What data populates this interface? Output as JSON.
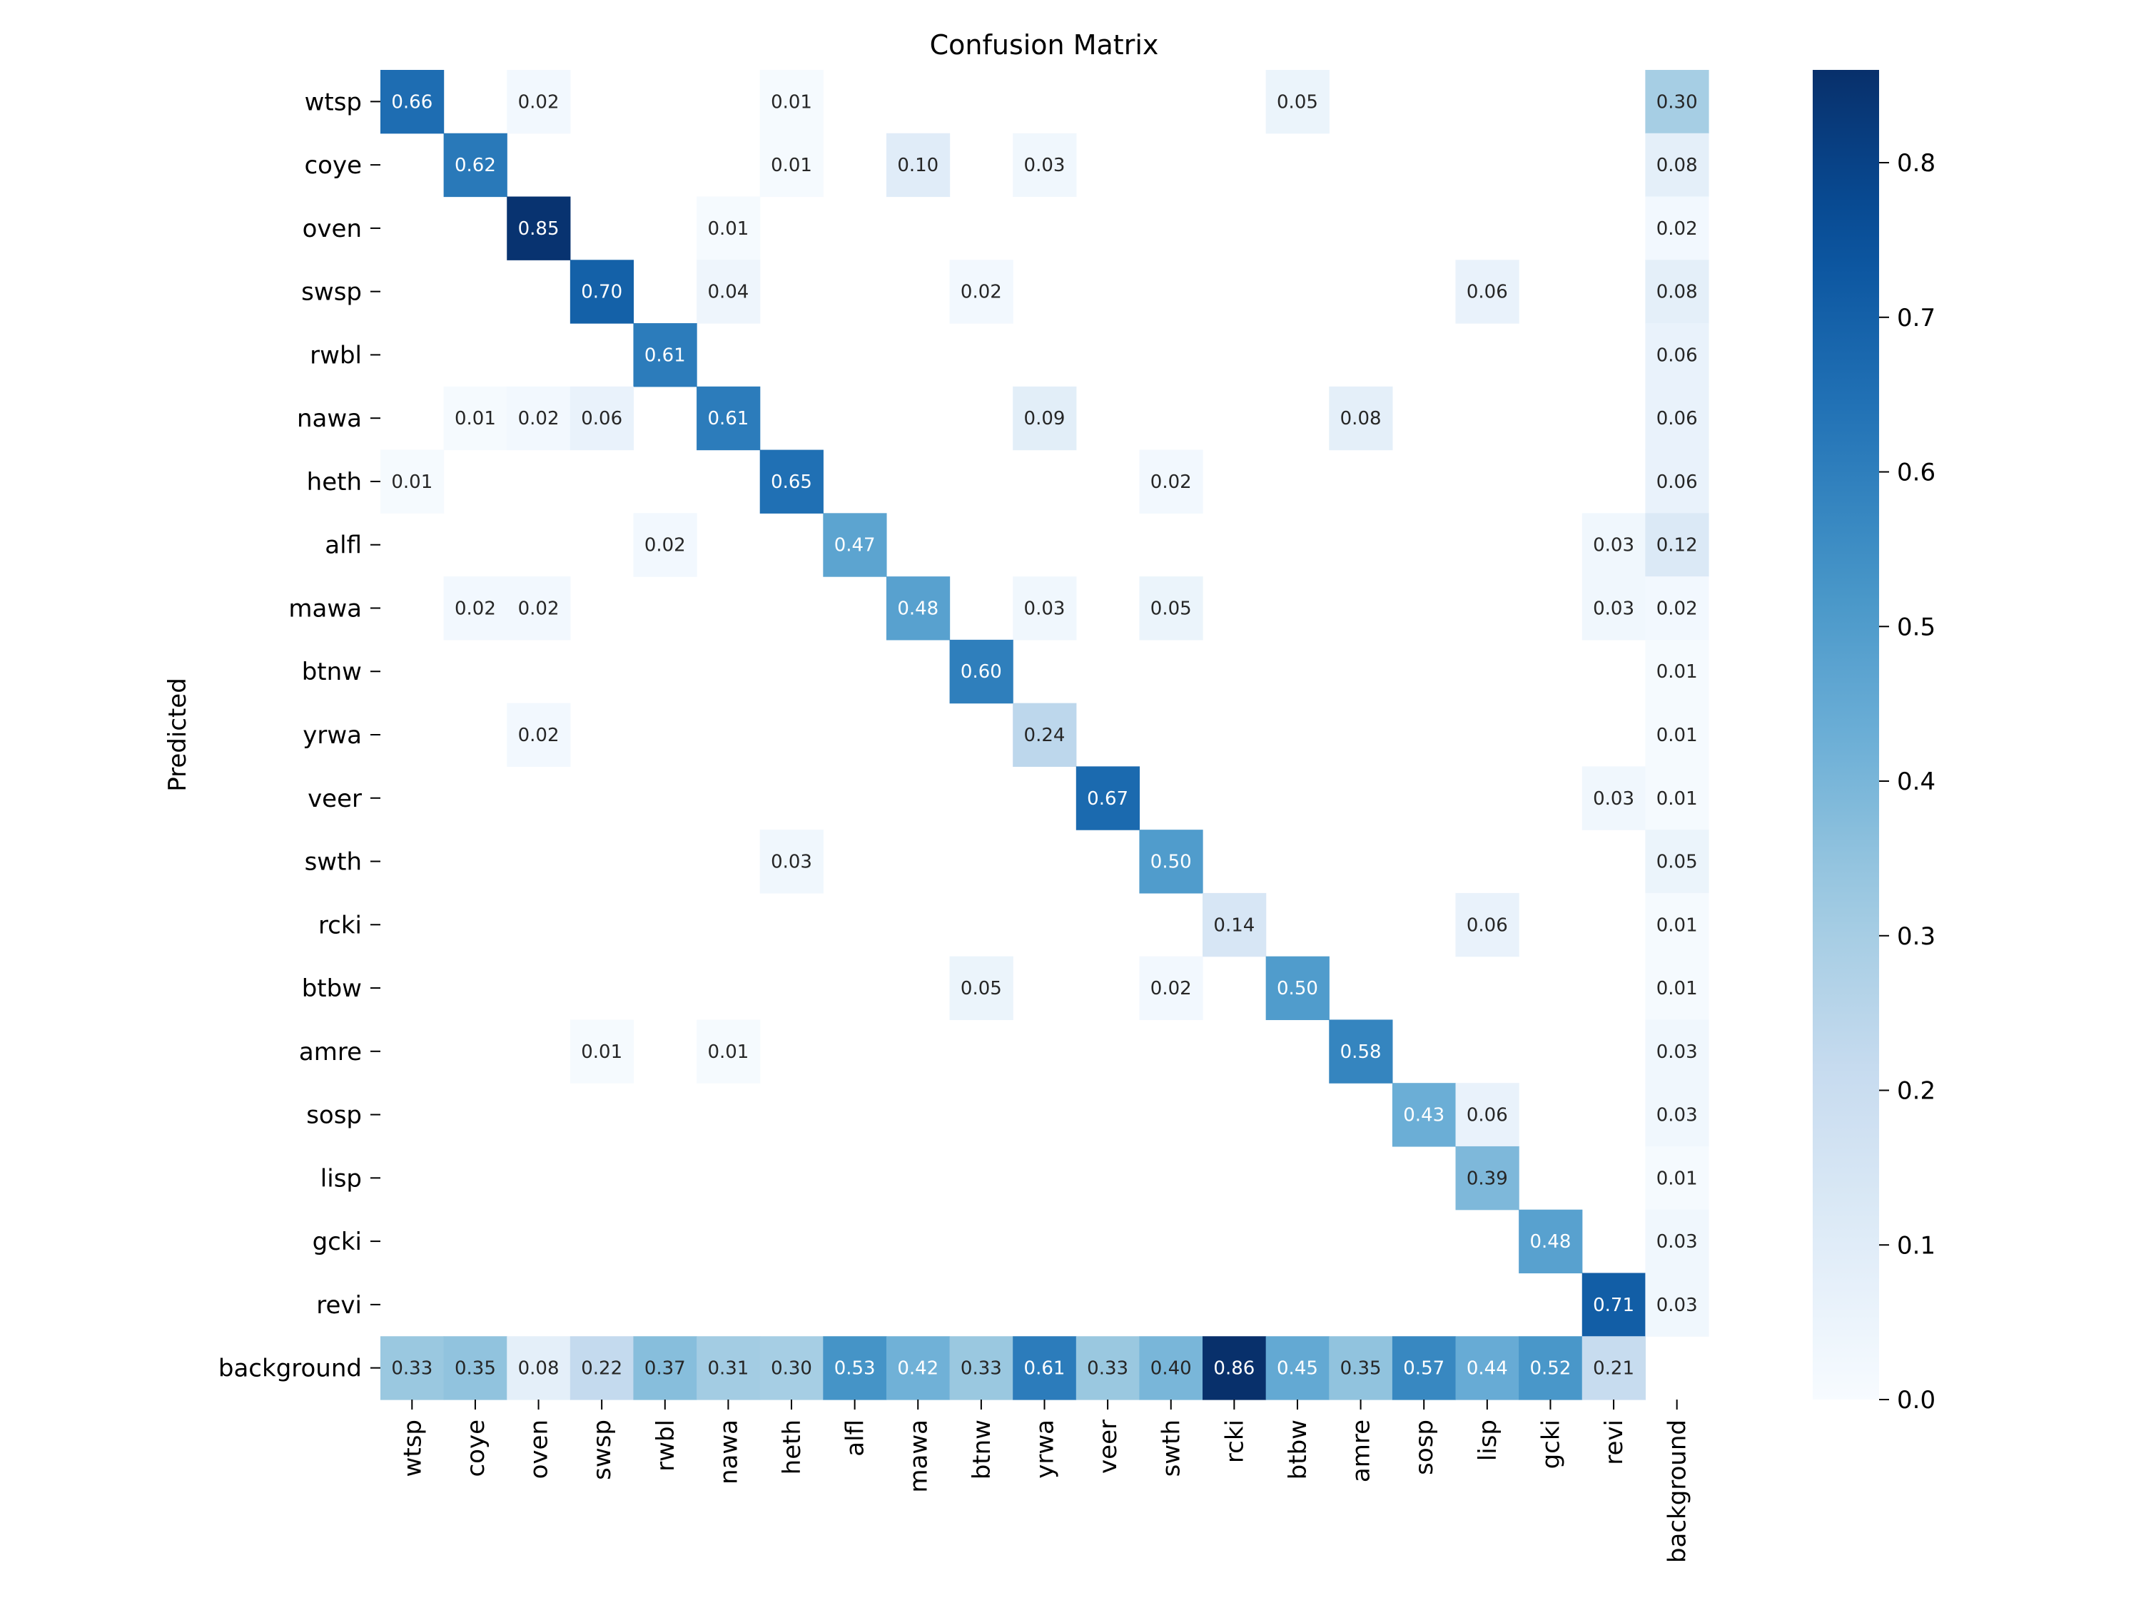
{
  "chart_data": {
    "type": "heatmap",
    "title": "Confusion Matrix",
    "xlabel": "",
    "ylabel": "Predicted",
    "colormap": "Blues",
    "vmin": 0,
    "vmax": 0.86,
    "colorbar_ticks": [
      "0.0",
      "0.1",
      "0.2",
      "0.3",
      "0.4",
      "0.5",
      "0.6",
      "0.7",
      "0.8"
    ],
    "colorbar_tick_values": [
      0,
      0.1,
      0.2,
      0.3,
      0.4,
      0.5,
      0.6,
      0.7,
      0.8
    ],
    "labels": [
      "wtsp",
      "coye",
      "oven",
      "swsp",
      "rwbl",
      "nawa",
      "heth",
      "alfl",
      "mawa",
      "btnw",
      "yrwa",
      "veer",
      "swth",
      "rcki",
      "btbw",
      "amre",
      "sosp",
      "lisp",
      "gcki",
      "revi",
      "background"
    ],
    "sparse_rows": [
      {
        "0": 0.66,
        "2": 0.02,
        "6": 0.01,
        "14": 0.05,
        "20": 0.3
      },
      {
        "1": 0.62,
        "6": 0.01,
        "8": 0.1,
        "10": 0.03,
        "20": 0.08
      },
      {
        "2": 0.85,
        "5": 0.01,
        "20": 0.02
      },
      {
        "3": 0.7,
        "5": 0.04,
        "9": 0.02,
        "17": 0.06,
        "20": 0.08
      },
      {
        "4": 0.61,
        "20": 0.06
      },
      {
        "1": 0.01,
        "2": 0.02,
        "3": 0.06,
        "5": 0.61,
        "10": 0.09,
        "15": 0.08,
        "20": 0.06
      },
      {
        "0": 0.01,
        "6": 0.65,
        "12": 0.02,
        "20": 0.06
      },
      {
        "4": 0.02,
        "7": 0.47,
        "19": 0.03,
        "20": 0.12
      },
      {
        "1": 0.02,
        "2": 0.02,
        "8": 0.48,
        "10": 0.03,
        "12": 0.05,
        "19": 0.03,
        "20": 0.02
      },
      {
        "9": 0.6,
        "20": 0.01
      },
      {
        "2": 0.02,
        "10": 0.24,
        "20": 0.01
      },
      {
        "11": 0.67,
        "19": 0.03,
        "20": 0.01
      },
      {
        "6": 0.03,
        "12": 0.5,
        "20": 0.05
      },
      {
        "13": 0.14,
        "17": 0.06,
        "20": 0.01
      },
      {
        "9": 0.05,
        "12": 0.02,
        "14": 0.5,
        "20": 0.01
      },
      {
        "3": 0.01,
        "5": 0.01,
        "15": 0.58,
        "20": 0.03
      },
      {
        "16": 0.43,
        "17": 0.06,
        "20": 0.03
      },
      {
        "17": 0.39,
        "20": 0.01
      },
      {
        "18": 0.48,
        "20": 0.03
      },
      {
        "19": 0.71,
        "20": 0.03
      },
      {
        "0": 0.33,
        "1": 0.35,
        "2": 0.08,
        "3": 0.22,
        "4": 0.37,
        "5": 0.31,
        "6": 0.3,
        "7": 0.53,
        "8": 0.42,
        "9": 0.33,
        "10": 0.61,
        "11": 0.33,
        "12": 0.4,
        "13": 0.86,
        "14": 0.45,
        "15": 0.35,
        "16": 0.57,
        "17": 0.44,
        "18": 0.52,
        "19": 0.21
      }
    ]
  }
}
